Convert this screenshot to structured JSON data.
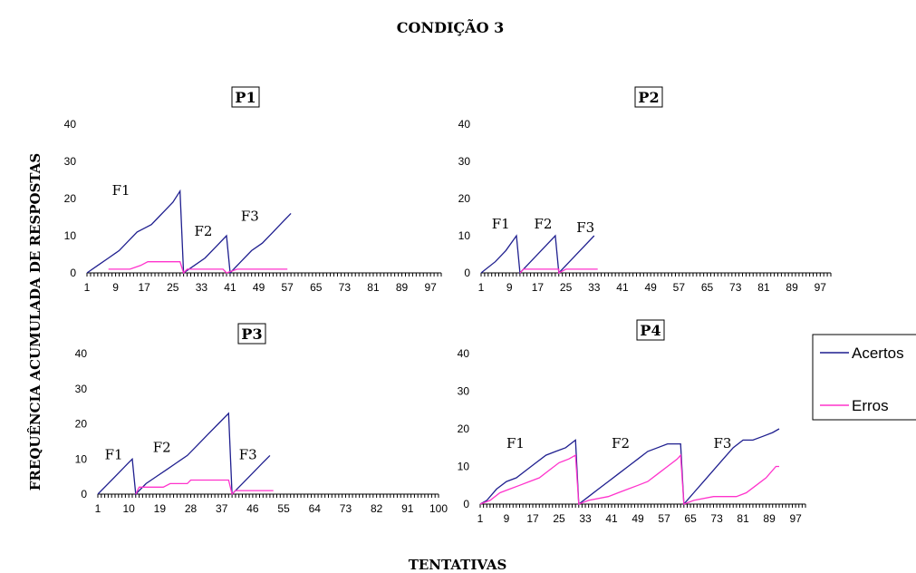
{
  "figure": {
    "title": "CONDIÇÃO 3",
    "ylabel": "FREQUÊNCIA ACUMULADA DE RESPOSTAS",
    "xlabel": "TENTATIVAS"
  },
  "legend": {
    "placement": "right",
    "items": [
      {
        "label": "Acertos",
        "color": "#1f1f8f"
      },
      {
        "label": "Erros",
        "color": "#ff33cc"
      }
    ]
  },
  "chart_data": [
    {
      "type": "line",
      "title": "P1",
      "ylim": [
        0,
        40
      ],
      "yticks": [
        0,
        10,
        20,
        30,
        40
      ],
      "xlim": [
        1,
        100
      ],
      "xticks": [
        1,
        9,
        17,
        25,
        33,
        41,
        49,
        57,
        65,
        73,
        81,
        89,
        97
      ],
      "annotations": [
        {
          "text": "F1",
          "x": 8,
          "y": 21
        },
        {
          "text": "F2",
          "x": 31,
          "y": 10
        },
        {
          "text": "F3",
          "x": 44,
          "y": 14
        }
      ],
      "series": [
        {
          "name": "Acertos",
          "points": [
            [
              1,
              0
            ],
            [
              4,
              2
            ],
            [
              7,
              4
            ],
            [
              10,
              6
            ],
            [
              13,
              9
            ],
            [
              15,
              11
            ],
            [
              17,
              12
            ],
            [
              19,
              13
            ],
            [
              21,
              15
            ],
            [
              23,
              17
            ],
            [
              25,
              19
            ],
            [
              27,
              22
            ],
            [
              28,
              0
            ],
            [
              31,
              2
            ],
            [
              34,
              4
            ],
            [
              37,
              7
            ],
            [
              40,
              10
            ],
            [
              41,
              0
            ],
            [
              44,
              3
            ],
            [
              47,
              6
            ],
            [
              50,
              8
            ],
            [
              53,
              11
            ],
            [
              56,
              14
            ],
            [
              58,
              16
            ]
          ]
        },
        {
          "name": "Erros",
          "points": [
            [
              7,
              1
            ],
            [
              13,
              1
            ],
            [
              16,
              2
            ],
            [
              18,
              3
            ],
            [
              27,
              3
            ],
            [
              28,
              0
            ],
            [
              29,
              1
            ],
            [
              39,
              1
            ],
            [
              40,
              0
            ],
            [
              43,
              1
            ],
            [
              57,
              1
            ]
          ]
        }
      ]
    },
    {
      "type": "line",
      "title": "P2",
      "ylim": [
        0,
        40
      ],
      "yticks": [
        0,
        10,
        20,
        30,
        40
      ],
      "xlim": [
        1,
        100
      ],
      "xticks": [
        1,
        9,
        17,
        25,
        33,
        41,
        49,
        57,
        65,
        73,
        81,
        89,
        97
      ],
      "annotations": [
        {
          "text": "F1",
          "x": 4,
          "y": 12
        },
        {
          "text": "F2",
          "x": 16,
          "y": 12
        },
        {
          "text": "F3",
          "x": 28,
          "y": 11
        }
      ],
      "series": [
        {
          "name": "Acertos",
          "points": [
            [
              1,
              0
            ],
            [
              5,
              3
            ],
            [
              8,
              6
            ],
            [
              11,
              10
            ],
            [
              12,
              0
            ],
            [
              15,
              3
            ],
            [
              19,
              7
            ],
            [
              22,
              10
            ],
            [
              23,
              0
            ],
            [
              26,
              3
            ],
            [
              30,
              7
            ],
            [
              33,
              10
            ]
          ]
        },
        {
          "name": "Erros",
          "points": [
            [
              12,
              0
            ],
            [
              13,
              1
            ],
            [
              23,
              1
            ],
            [
              23,
              0
            ],
            [
              25,
              1
            ],
            [
              34,
              1
            ]
          ]
        }
      ]
    },
    {
      "type": "line",
      "title": "P3",
      "ylim": [
        0,
        40
      ],
      "yticks": [
        0,
        10,
        20,
        30,
        40
      ],
      "xlim": [
        1,
        100
      ],
      "xticks": [
        1,
        10,
        19,
        28,
        37,
        46,
        55,
        64,
        73,
        82,
        91,
        100
      ],
      "annotations": [
        {
          "text": "F1",
          "x": 3,
          "y": 10
        },
        {
          "text": "F2",
          "x": 17,
          "y": 12
        },
        {
          "text": "F3",
          "x": 42,
          "y": 10
        }
      ],
      "series": [
        {
          "name": "Acertos",
          "points": [
            [
              1,
              0
            ],
            [
              4,
              3
            ],
            [
              7,
              6
            ],
            [
              10,
              9
            ],
            [
              11,
              10
            ],
            [
              12,
              0
            ],
            [
              15,
              3
            ],
            [
              18,
              5
            ],
            [
              21,
              7
            ],
            [
              24,
              9
            ],
            [
              27,
              11
            ],
            [
              30,
              14
            ],
            [
              33,
              17
            ],
            [
              36,
              20
            ],
            [
              39,
              23
            ],
            [
              40,
              0
            ],
            [
              43,
              3
            ],
            [
              46,
              6
            ],
            [
              49,
              9
            ],
            [
              51,
              11
            ]
          ]
        },
        {
          "name": "Erros",
          "points": [
            [
              12,
              0
            ],
            [
              13,
              2
            ],
            [
              20,
              2
            ],
            [
              22,
              3
            ],
            [
              27,
              3
            ],
            [
              28,
              4
            ],
            [
              39,
              4
            ],
            [
              40,
              0
            ],
            [
              41,
              1
            ],
            [
              52,
              1
            ]
          ]
        }
      ]
    },
    {
      "type": "line",
      "title": "P4",
      "ylim": [
        0,
        40
      ],
      "yticks": [
        0,
        10,
        20,
        30,
        40
      ],
      "xlim": [
        1,
        100
      ],
      "xticks": [
        1,
        9,
        17,
        25,
        33,
        41,
        49,
        57,
        65,
        73,
        81,
        89,
        97
      ],
      "annotations": [
        {
          "text": "F1",
          "x": 9,
          "y": 15
        },
        {
          "text": "F2",
          "x": 41,
          "y": 15
        },
        {
          "text": "F3",
          "x": 72,
          "y": 15
        }
      ],
      "series": [
        {
          "name": "Acertos",
          "points": [
            [
              1,
              0
            ],
            [
              3,
              1
            ],
            [
              6,
              4
            ],
            [
              9,
              6
            ],
            [
              12,
              7
            ],
            [
              15,
              9
            ],
            [
              18,
              11
            ],
            [
              21,
              13
            ],
            [
              24,
              14
            ],
            [
              27,
              15
            ],
            [
              30,
              17
            ],
            [
              31,
              0
            ],
            [
              34,
              2
            ],
            [
              37,
              4
            ],
            [
              40,
              6
            ],
            [
              43,
              8
            ],
            [
              46,
              10
            ],
            [
              49,
              12
            ],
            [
              52,
              14
            ],
            [
              55,
              15
            ],
            [
              58,
              16
            ],
            [
              62,
              16
            ],
            [
              63,
              0
            ],
            [
              66,
              3
            ],
            [
              69,
              6
            ],
            [
              72,
              9
            ],
            [
              75,
              12
            ],
            [
              78,
              15
            ],
            [
              81,
              17
            ],
            [
              84,
              17
            ],
            [
              87,
              18
            ],
            [
              90,
              19
            ],
            [
              92,
              20
            ]
          ]
        },
        {
          "name": "Erros",
          "points": [
            [
              1,
              0
            ],
            [
              4,
              1
            ],
            [
              7,
              3
            ],
            [
              10,
              4
            ],
            [
              13,
              5
            ],
            [
              16,
              6
            ],
            [
              19,
              7
            ],
            [
              22,
              9
            ],
            [
              25,
              11
            ],
            [
              28,
              12
            ],
            [
              30,
              13
            ],
            [
              31,
              0
            ],
            [
              34,
              1
            ],
            [
              40,
              2
            ],
            [
              43,
              3
            ],
            [
              46,
              4
            ],
            [
              49,
              5
            ],
            [
              52,
              6
            ],
            [
              55,
              8
            ],
            [
              58,
              10
            ],
            [
              61,
              12
            ],
            [
              62,
              13
            ],
            [
              63,
              0
            ],
            [
              66,
              1
            ],
            [
              72,
              2
            ],
            [
              79,
              2
            ],
            [
              82,
              3
            ],
            [
              85,
              5
            ],
            [
              88,
              7
            ],
            [
              91,
              10
            ],
            [
              92,
              10
            ]
          ]
        }
      ]
    }
  ]
}
